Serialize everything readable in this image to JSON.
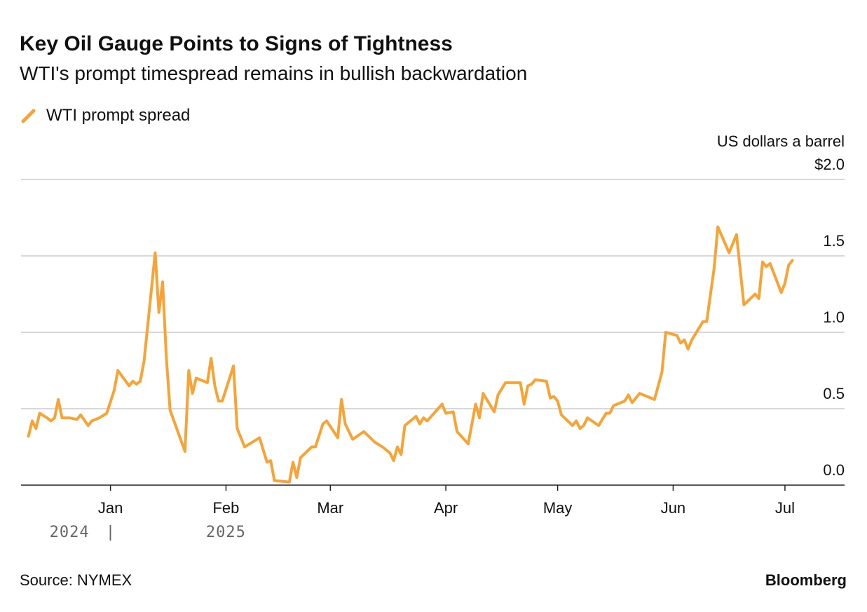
{
  "chart_data": {
    "type": "line",
    "title": "Key Oil Gauge Points to Signs of Tightness",
    "subtitle": "WTI's prompt timespread remains in bullish backwardation",
    "y_label": "US dollars a barrel",
    "source": "Source: NYMEX",
    "brand": "Bloomberg",
    "legend": "top-left",
    "grid": true,
    "xlim": [
      -24,
      197
    ],
    "ylim": [
      0,
      2
    ],
    "xticks": [
      {
        "value": 0,
        "label": "Jan"
      },
      {
        "value": 31,
        "label": "Feb"
      },
      {
        "value": 59,
        "label": "Mar"
      },
      {
        "value": 90,
        "label": "Apr"
      },
      {
        "value": 120,
        "label": "May"
      },
      {
        "value": 151,
        "label": "Jun"
      },
      {
        "value": 181,
        "label": "Jul"
      }
    ],
    "year_labels": [
      {
        "value": -11,
        "label": "2024"
      },
      {
        "value": 31,
        "label": "2025"
      }
    ],
    "yticks": [
      {
        "value": 0,
        "label": "0.0"
      },
      {
        "value": 0.5,
        "label": "0.5"
      },
      {
        "value": 1,
        "label": "1.0"
      },
      {
        "value": 1.5,
        "label": "1.5"
      },
      {
        "value": 2,
        "label": "$2.0"
      }
    ],
    "x": [
      -22,
      -21,
      -20,
      -19,
      -17,
      -16,
      -15,
      -14,
      -13,
      -11,
      -9,
      -8,
      -6,
      -5,
      -3,
      -1,
      1,
      2,
      5,
      6,
      7,
      8,
      9,
      12,
      13,
      14,
      15,
      16,
      20,
      21,
      22,
      23,
      26,
      27,
      28,
      29,
      30,
      33,
      34,
      36,
      40,
      42,
      43,
      44,
      48,
      49,
      50,
      51,
      54,
      55,
      57,
      58,
      61,
      62,
      63,
      65,
      68,
      71,
      73,
      75,
      76,
      77,
      78,
      79,
      82,
      83,
      84,
      85,
      89,
      90,
      92,
      93,
      96,
      98,
      99,
      100,
      103,
      104,
      106,
      110,
      111,
      112,
      113,
      114,
      117,
      118,
      119,
      120,
      121,
      124,
      125,
      126,
      127,
      128,
      131,
      133,
      134,
      135,
      138,
      139,
      140,
      142,
      146,
      148,
      149,
      152,
      153,
      154,
      155,
      156,
      159,
      160,
      162,
      163,
      166,
      168,
      170,
      173,
      174,
      175,
      176,
      177,
      180,
      181,
      182,
      183
    ],
    "series": [
      {
        "name": "WTI prompt spread",
        "color": "#f7a336",
        "values": [
          0.32,
          0.42,
          0.37,
          0.47,
          0.44,
          0.42,
          0.44,
          0.56,
          0.44,
          0.44,
          0.43,
          0.46,
          0.39,
          0.42,
          0.44,
          0.47,
          0.62,
          0.75,
          0.65,
          0.68,
          0.66,
          0.68,
          0.81,
          1.52,
          1.13,
          1.33,
          0.83,
          0.49,
          0.22,
          0.75,
          0.6,
          0.7,
          0.67,
          0.83,
          0.65,
          0.55,
          0.55,
          0.78,
          0.37,
          0.25,
          0.31,
          0.15,
          0.16,
          0.03,
          0.02,
          0.15,
          0.05,
          0.18,
          0.25,
          0.25,
          0.4,
          0.42,
          0.31,
          0.56,
          0.4,
          0.3,
          0.35,
          0.28,
          0.25,
          0.21,
          0.16,
          0.25,
          0.2,
          0.39,
          0.45,
          0.4,
          0.44,
          0.42,
          0.53,
          0.47,
          0.48,
          0.35,
          0.27,
          0.53,
          0.44,
          0.6,
          0.48,
          0.59,
          0.67,
          0.67,
          0.53,
          0.65,
          0.66,
          0.69,
          0.68,
          0.57,
          0.58,
          0.55,
          0.46,
          0.39,
          0.42,
          0.37,
          0.39,
          0.44,
          0.39,
          0.47,
          0.47,
          0.52,
          0.55,
          0.59,
          0.54,
          0.6,
          0.56,
          0.74,
          1.0,
          0.98,
          0.93,
          0.95,
          0.89,
          0.95,
          1.07,
          1.07,
          1.42,
          1.69,
          1.52,
          1.64,
          1.18,
          1.25,
          1.22,
          1.46,
          1.43,
          1.45,
          1.26,
          1.32,
          1.44,
          1.47
        ]
      }
    ]
  }
}
